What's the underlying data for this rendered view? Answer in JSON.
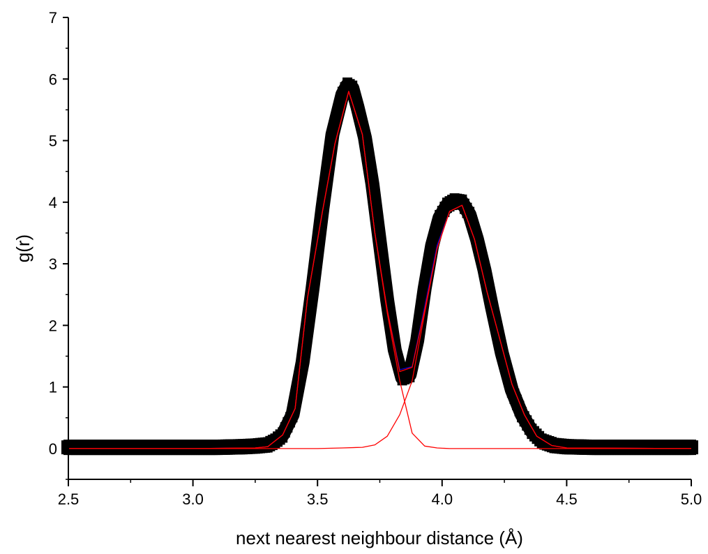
{
  "chart_data": {
    "type": "line",
    "title": "",
    "xlabel": "next nearest neighbour distance (Å)",
    "ylabel": "g(r)",
    "xlim": [
      2.5,
      5.0
    ],
    "ylim": [
      -0.5,
      7
    ],
    "x_ticks": [
      "2.5",
      "3.0",
      "3.5",
      "4.0",
      "4.5",
      "5.0"
    ],
    "y_ticks": [
      "0",
      "1",
      "2",
      "3",
      "4",
      "5",
      "6",
      "7"
    ],
    "grid": false,
    "legend": "none",
    "series": [
      {
        "style": "thick black markers",
        "color": "#000000",
        "x": [
          2.5,
          2.6,
          2.7,
          2.8,
          2.9,
          3.0,
          3.1,
          3.2,
          3.25,
          3.3,
          3.33,
          3.36,
          3.4,
          3.44,
          3.48,
          3.52,
          3.56,
          3.6,
          3.62,
          3.64,
          3.66,
          3.69,
          3.72,
          3.75,
          3.78,
          3.81,
          3.84,
          3.87,
          3.9,
          3.93,
          3.96,
          3.99,
          4.02,
          4.05,
          4.08,
          4.11,
          4.14,
          4.17,
          4.2,
          4.24,
          4.28,
          4.32,
          4.36,
          4.4,
          4.45,
          4.5,
          4.6,
          4.7,
          4.8,
          4.9,
          5.0
        ],
        "y": [
          0.02,
          0.02,
          0.02,
          0.02,
          0.02,
          0.02,
          0.02,
          0.03,
          0.04,
          0.06,
          0.12,
          0.22,
          0.55,
          1.4,
          2.6,
          3.9,
          5.1,
          5.75,
          5.9,
          5.85,
          5.55,
          5.05,
          4.3,
          3.35,
          2.4,
          1.6,
          1.15,
          1.2,
          1.75,
          2.6,
          3.3,
          3.75,
          3.95,
          4.02,
          4.0,
          3.8,
          3.4,
          2.9,
          2.3,
          1.55,
          0.95,
          0.55,
          0.28,
          0.12,
          0.05,
          0.03,
          0.02,
          0.02,
          0.02,
          0.02,
          0.02
        ]
      },
      {
        "style": "blue fit line",
        "color": "#0000cc",
        "x": [
          2.5,
          3.0,
          3.25,
          3.3,
          3.36,
          3.41,
          3.46,
          3.52,
          3.57,
          3.625,
          3.68,
          3.73,
          3.78,
          3.83,
          3.88,
          3.93,
          3.98,
          4.03,
          4.08,
          4.13,
          4.18,
          4.23,
          4.28,
          4.33,
          4.38,
          4.44,
          4.5,
          5.0
        ],
        "y": [
          0.0,
          0.0,
          0.01,
          0.03,
          0.22,
          0.65,
          2.45,
          3.85,
          4.95,
          5.8,
          5.1,
          3.5,
          2.25,
          1.28,
          1.33,
          2.3,
          3.3,
          3.85,
          3.95,
          3.4,
          2.55,
          1.8,
          1.05,
          0.55,
          0.2,
          0.05,
          0.01,
          0.0
        ]
      },
      {
        "style": "red peak 1",
        "color": "#ff0000",
        "x": [
          2.5,
          3.0,
          3.25,
          3.3,
          3.36,
          3.41,
          3.46,
          3.52,
          3.57,
          3.625,
          3.68,
          3.73,
          3.78,
          3.83,
          3.88,
          3.93,
          3.98,
          4.03,
          4.08,
          4.5,
          5.0
        ],
        "y": [
          0.0,
          0.0,
          0.01,
          0.03,
          0.22,
          0.65,
          2.45,
          3.85,
          4.95,
          5.8,
          5.1,
          3.5,
          2.2,
          1.1,
          0.25,
          0.04,
          0.01,
          0.0,
          0.0,
          0.0,
          0.0
        ]
      },
      {
        "style": "red peak 2",
        "color": "#ff0000",
        "x": [
          2.5,
          3.0,
          3.5,
          3.6,
          3.68,
          3.73,
          3.78,
          3.83,
          3.88,
          3.93,
          3.98,
          4.03,
          4.08,
          4.13,
          4.18,
          4.23,
          4.28,
          4.33,
          4.38,
          4.44,
          4.5,
          5.0
        ],
        "y": [
          0.0,
          0.0,
          0.0,
          0.01,
          0.02,
          0.06,
          0.2,
          0.55,
          1.1,
          2.2,
          3.25,
          3.85,
          3.95,
          3.4,
          2.55,
          1.8,
          1.05,
          0.55,
          0.2,
          0.05,
          0.01,
          0.0
        ]
      },
      {
        "style": "red total line",
        "color": "#ff0000",
        "x": [
          2.5,
          3.0,
          3.25,
          3.3,
          3.36,
          3.41,
          3.46,
          3.52,
          3.57,
          3.625,
          3.68,
          3.73,
          3.78,
          3.83,
          3.88,
          3.93,
          3.98,
          4.03,
          4.08,
          4.13,
          4.18,
          4.23,
          4.28,
          4.33,
          4.38,
          4.44,
          4.5,
          5.0
        ],
        "y": [
          0.0,
          0.0,
          0.01,
          0.03,
          0.22,
          0.65,
          2.45,
          3.85,
          4.95,
          5.8,
          5.1,
          3.5,
          2.25,
          1.25,
          1.32,
          2.25,
          3.25,
          3.85,
          3.95,
          3.4,
          2.55,
          1.8,
          1.05,
          0.55,
          0.2,
          0.05,
          0.01,
          0.0
        ]
      }
    ]
  }
}
